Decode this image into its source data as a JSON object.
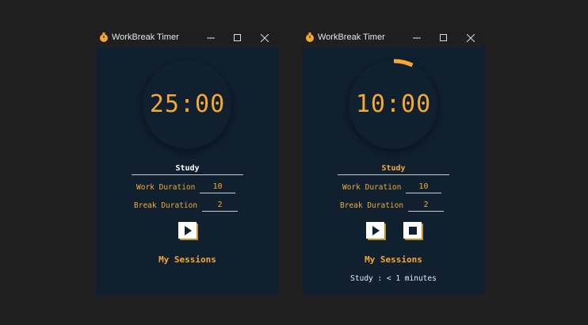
{
  "windows": [
    {
      "title": "WorkBreak Timer",
      "timer": "25:00",
      "mode": "Study",
      "mode_color": "#ffffff",
      "work_label": "Work Duration",
      "work_value": "10",
      "break_label": "Break Duration",
      "break_value": "2",
      "sessions_title": "My Sessions",
      "sessions": [],
      "progress": 0,
      "show_stop": false
    },
    {
      "title": "WorkBreak Timer",
      "timer": "10:00",
      "mode": "Study",
      "mode_color": "#f5a833",
      "work_label": "Work Duration",
      "work_value": "10",
      "break_label": "Break Duration",
      "break_value": "2",
      "sessions_title": "My Sessions",
      "sessions": [
        "Study : < 1 minutes"
      ],
      "progress": 0.07,
      "show_stop": true
    }
  ],
  "colors": {
    "accent": "#f5a833",
    "background": "#10202f",
    "titlebar": "#1f1f1f"
  },
  "icons": {
    "app": "stopwatch-icon",
    "minimize": "minimize-icon",
    "maximize": "maximize-icon",
    "close": "close-icon",
    "play": "play-icon",
    "stop": "stop-icon"
  }
}
